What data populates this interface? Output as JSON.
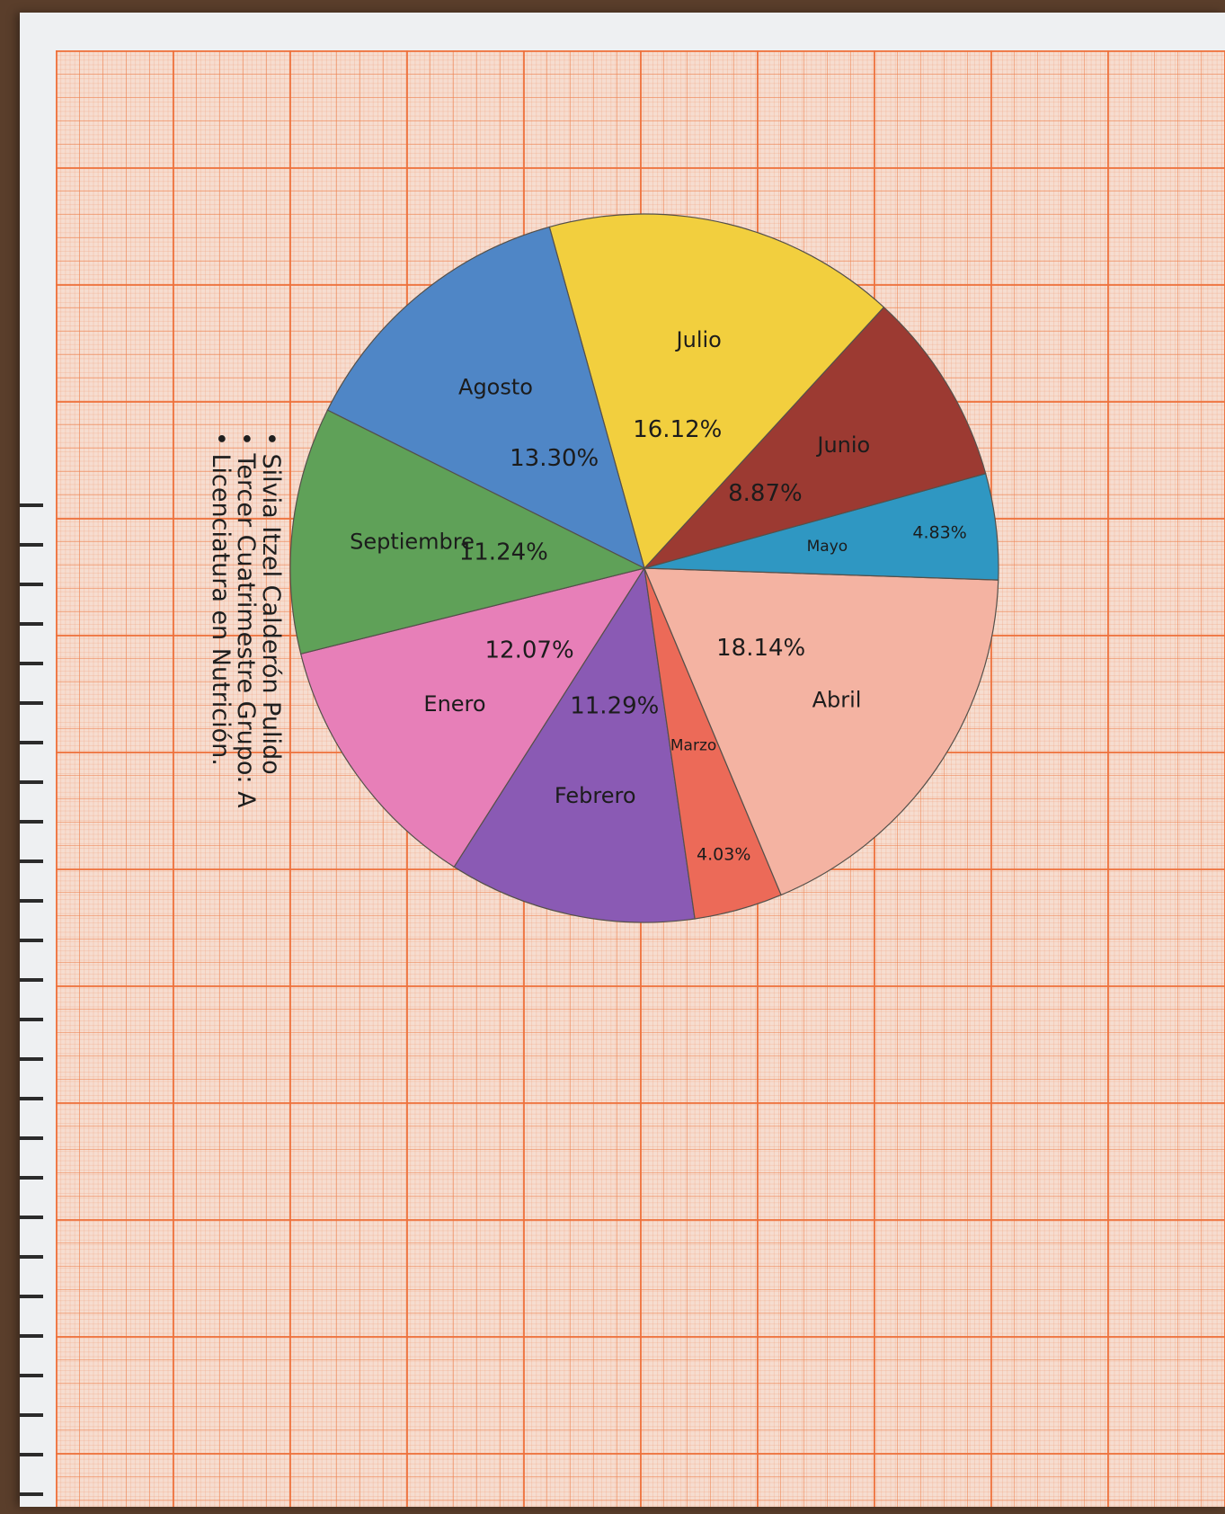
{
  "chart_data": {
    "type": "pie",
    "title": "",
    "categories": [
      "Enero",
      "Febrero",
      "Marzo",
      "Abril",
      "Mayo",
      "Junio",
      "Julio",
      "Agosto",
      "Septiembre"
    ],
    "values": [
      12.07,
      11.29,
      4.03,
      18.14,
      4.83,
      8.87,
      16.12,
      13.3,
      11.24
    ],
    "value_labels": [
      "12.07%",
      "11.29%",
      "4.03%",
      "18.14%",
      "4.83%",
      "8.87%",
      "16.12%",
      "13.30%",
      "11.24%"
    ],
    "colors": [
      "#e77fb8",
      "#8a5ab4",
      "#ec6a58",
      "#f4b3a2",
      "#2f97c2",
      "#9c3a32",
      "#f2cf3e",
      "#4f86c6",
      "#5fa158"
    ],
    "legend": "none",
    "grid": false
  },
  "author_lines": [
    "Silvia Itzel Calderón Pulido",
    "Tercer Cuatrimestre Grupo: A",
    "Licenciatura en Nutrición."
  ]
}
